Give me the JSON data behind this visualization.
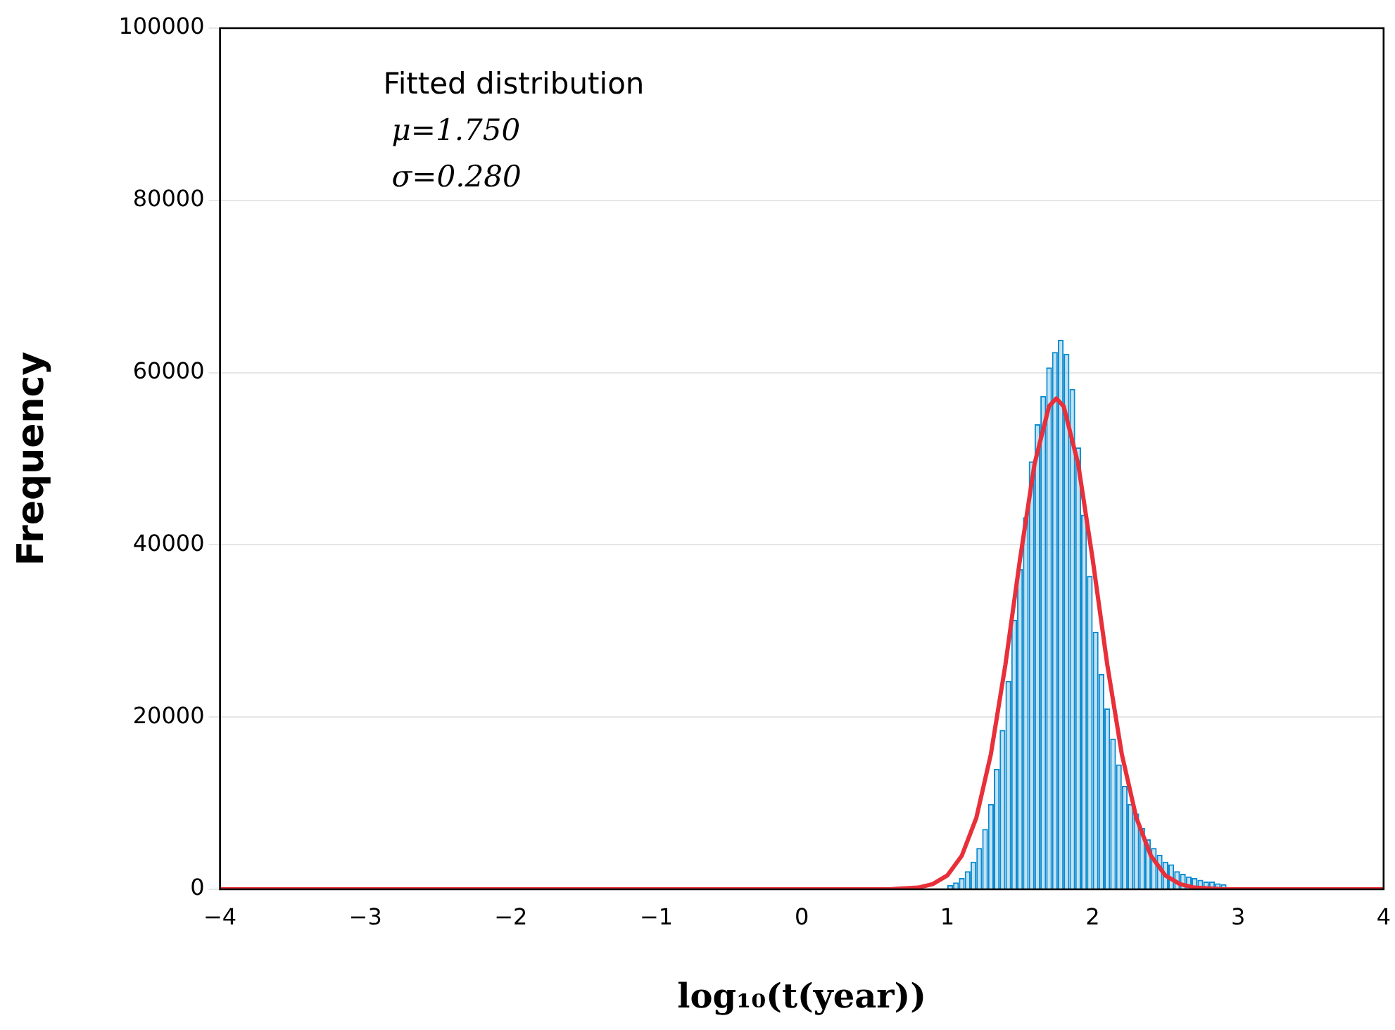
{
  "chart_data": {
    "type": "histogram",
    "xlabel": "log₁₀(t(year))",
    "ylabel": "Frequency",
    "annotations": [
      "Fitted distribution",
      "μ=1.750",
      "σ=0.280"
    ],
    "bins": [
      1.0,
      1.04,
      1.08,
      1.12,
      1.16,
      1.2,
      1.24,
      1.28,
      1.32,
      1.36,
      1.4,
      1.44,
      1.48,
      1.52,
      1.56,
      1.6,
      1.64,
      1.68,
      1.72,
      1.76,
      1.8,
      1.84,
      1.88,
      1.92,
      1.96,
      2.0,
      2.04,
      2.08,
      2.12,
      2.16,
      2.2,
      2.24,
      2.28,
      2.32,
      2.36,
      2.4,
      2.44,
      2.48,
      2.52,
      2.56,
      2.6,
      2.64,
      2.68,
      2.72,
      2.76,
      2.8,
      2.84,
      2.88,
      2.92
    ],
    "series": [
      {
        "color": "#0b8bd0",
        "values": [
          500,
          800,
          1300,
          2100,
          3200,
          4800,
          7000,
          9900,
          14000,
          18500,
          24200,
          31300,
          37200,
          43200,
          49700,
          54000,
          57300,
          60600,
          62400,
          63800,
          62200,
          58100,
          51300,
          43500,
          36400,
          29900,
          25000,
          21000,
          17500,
          14500,
          12000,
          9900,
          8800,
          7100,
          5800,
          4800,
          4000,
          3200,
          2900,
          2100,
          1800,
          1500,
          1300,
          1100,
          900,
          900,
          700,
          600
        ]
      },
      {
        "type": "line",
        "color": "#e8303a",
        "x": [
          -4,
          0.6,
          0.8,
          0.9,
          1.0,
          1.1,
          1.2,
          1.3,
          1.4,
          1.5,
          1.6,
          1.7,
          1.75,
          1.8,
          1.9,
          2.0,
          2.1,
          2.2,
          2.3,
          2.4,
          2.5,
          2.6,
          2.7,
          2.9,
          4
        ],
        "values": [
          0,
          0,
          200,
          600,
          1600,
          3900,
          8300,
          15700,
          26100,
          38300,
          49400,
          56100,
          57000,
          56100,
          49400,
          38300,
          26100,
          15700,
          8300,
          3900,
          1600,
          600,
          200,
          0,
          0
        ]
      }
    ],
    "xlim": [
      -4,
      4
    ],
    "xticks": [
      {
        "value": -4,
        "label": "−4"
      },
      {
        "value": -3,
        "label": "−3"
      },
      {
        "value": -2,
        "label": "−2"
      },
      {
        "value": -1,
        "label": "−1"
      },
      0,
      1,
      2,
      3,
      4
    ],
    "ylim": [
      0,
      100000
    ],
    "yticks": [
      0,
      20000,
      40000,
      60000,
      80000,
      100000
    ],
    "grid": "y",
    "legend": false
  }
}
